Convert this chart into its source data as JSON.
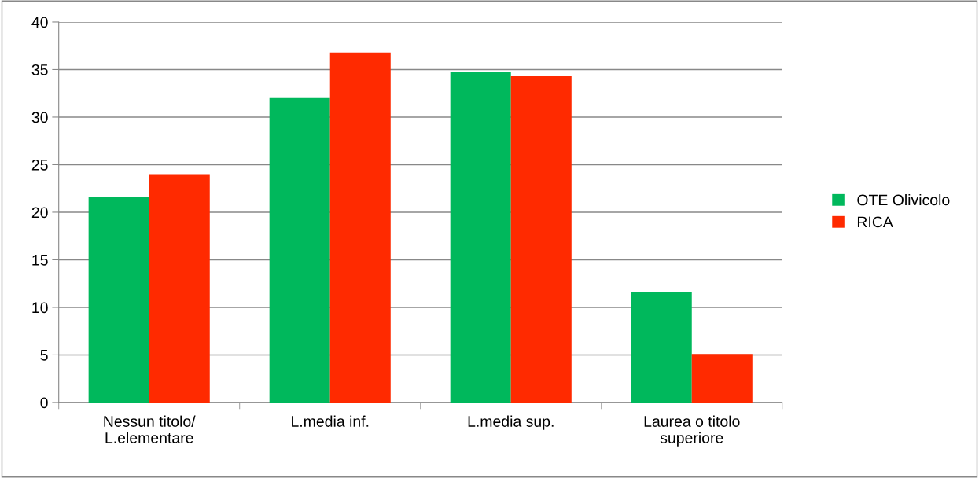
{
  "chart_data": {
    "type": "bar",
    "categories": [
      "Nessun titolo/\nL.elementare",
      "L.media inf.",
      "L.media sup.",
      "Laurea o titolo\nsuperiore"
    ],
    "series": [
      {
        "name": "OTE Olivicolo",
        "color": "#00b85c",
        "values": [
          21.6,
          32.0,
          34.8,
          11.6
        ]
      },
      {
        "name": "RICA",
        "color": "#ff2a00",
        "values": [
          24.0,
          36.8,
          34.3,
          5.1
        ]
      }
    ],
    "ylim": [
      0,
      40
    ],
    "yticks": [
      0,
      5,
      10,
      15,
      20,
      25,
      30,
      35,
      40
    ],
    "grid": "y",
    "legend": "right"
  }
}
